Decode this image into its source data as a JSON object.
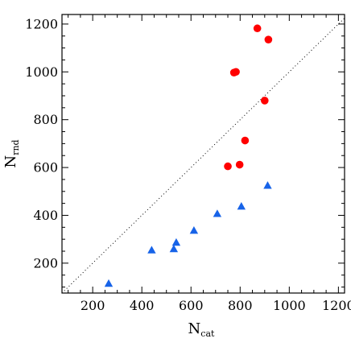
{
  "chart_data": {
    "type": "scatter",
    "title": "",
    "xlabel": {
      "main": "N",
      "sub": "cat"
    },
    "ylabel": {
      "main": "N",
      "sub": "rnd"
    },
    "xlim": [
      75,
      1225
    ],
    "ylim": [
      75,
      1240
    ],
    "xticks": [
      200,
      400,
      600,
      800,
      1000,
      1200
    ],
    "yticks": [
      200,
      400,
      600,
      800,
      1000,
      1200
    ],
    "grid": false,
    "legend": "none",
    "reference_line": {
      "style": "dotted",
      "relation": "y = x",
      "color": "#000000"
    },
    "series": [
      {
        "marker": "circle",
        "color": "#ff0000",
        "points": [
          {
            "x": 750,
            "y": 605
          },
          {
            "x": 798,
            "y": 612
          },
          {
            "x": 820,
            "y": 713
          },
          {
            "x": 775,
            "y": 997
          },
          {
            "x": 783,
            "y": 1000
          },
          {
            "x": 870,
            "y": 1182
          },
          {
            "x": 915,
            "y": 1135
          },
          {
            "x": 900,
            "y": 880
          }
        ]
      },
      {
        "marker": "triangle",
        "color": "#1763e8",
        "points": [
          {
            "x": 265,
            "y": 115
          },
          {
            "x": 440,
            "y": 255
          },
          {
            "x": 530,
            "y": 260
          },
          {
            "x": 540,
            "y": 287
          },
          {
            "x": 612,
            "y": 337
          },
          {
            "x": 707,
            "y": 407
          },
          {
            "x": 805,
            "y": 438
          },
          {
            "x": 912,
            "y": 525
          }
        ]
      }
    ]
  }
}
